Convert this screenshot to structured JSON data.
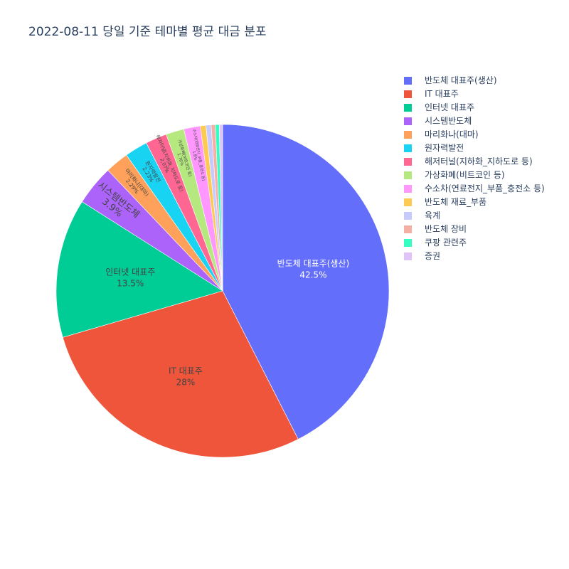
{
  "chart_data": {
    "type": "pie",
    "title": "2022-08-11 당일 기준 테마별 평균 대금 분포",
    "legend_position": "right",
    "categories": [
      "반도체 대표주(생산)",
      "IT 대표주",
      "인터넷 대표주",
      "시스템반도체",
      "마리화나(대마)",
      "원자력발전",
      "해저터널(지하화_지하도로 등)",
      "가상화폐(비트코인 등)",
      "수소차(연료전지_부품_충전소 등)",
      "반도체 재료_부품",
      "육계",
      "반도체 장비",
      "쿠팡 관련주",
      "증권"
    ],
    "values": [
      42.5,
      28,
      13.5,
      3.9,
      2.29,
      2.23,
      2.07,
      1.76,
      1.6,
      0.55,
      0.5,
      0.4,
      0.38,
      0.32
    ],
    "slice_labels": [
      {
        "text": "42.5%",
        "visible": true
      },
      {
        "text": "28%",
        "visible": true
      },
      {
        "text": "13.5%",
        "visible": true
      },
      {
        "text": "3.9%",
        "visible": true
      },
      {
        "text": "2.29%",
        "visible": true
      },
      {
        "text": "2.23%",
        "visible": true
      },
      {
        "text": "2.07%",
        "visible": true
      },
      {
        "text": "1.76%",
        "visible": true
      },
      {
        "text": "1.6%",
        "visible": true
      },
      {
        "text": "",
        "visible": false
      },
      {
        "text": "",
        "visible": false
      },
      {
        "text": "",
        "visible": false
      },
      {
        "text": "",
        "visible": false
      },
      {
        "text": "",
        "visible": false
      }
    ],
    "colors": [
      "#636efa",
      "#ef553b",
      "#00cc96",
      "#ab63fa",
      "#ffa15a",
      "#19d3f3",
      "#ff6692",
      "#b6e880",
      "#ff97ff",
      "#fecb52",
      "#c6cafd",
      "#f5b0a6",
      "#33ffc3",
      "#e0c3f7"
    ]
  }
}
